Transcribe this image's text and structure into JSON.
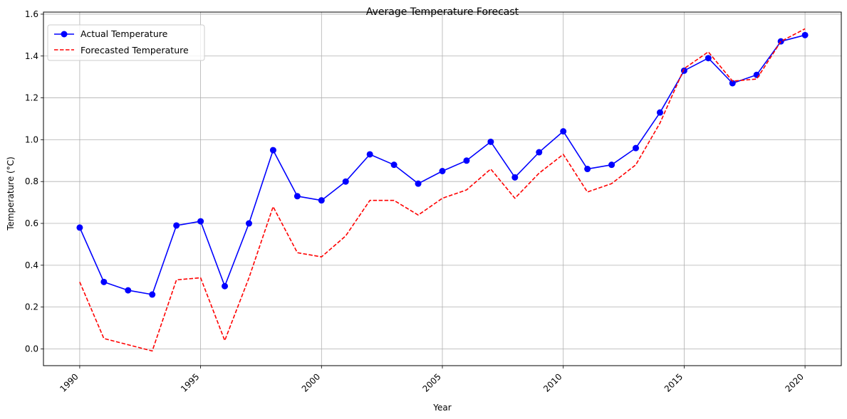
{
  "chart_data": {
    "type": "line",
    "title": "Average Temperature Forecast",
    "xlabel": "Year",
    "ylabel": "Temperature (°C)",
    "x": [
      1990,
      1991,
      1992,
      1993,
      1994,
      1995,
      1996,
      1997,
      1998,
      1999,
      2000,
      2001,
      2002,
      2003,
      2004,
      2005,
      2006,
      2007,
      2008,
      2009,
      2010,
      2011,
      2012,
      2013,
      2014,
      2015,
      2016,
      2017,
      2018,
      2019,
      2020
    ],
    "xlim": [
      1988.5,
      2021.5
    ],
    "ylim": [
      -0.08,
      1.61
    ],
    "xticks": [
      "1990",
      "1995",
      "2000",
      "2005",
      "2010",
      "2015",
      "2020"
    ],
    "yticks": [
      "0.0",
      "0.2",
      "0.4",
      "0.6",
      "0.8",
      "1.0",
      "1.2",
      "1.4",
      "1.6"
    ],
    "grid": true,
    "legend_position": "top-left",
    "series": [
      {
        "name": "Actual Temperature",
        "color": "#0000ff",
        "style": "solid",
        "marker": "circle",
        "values": [
          0.58,
          0.32,
          0.28,
          0.26,
          0.59,
          0.61,
          0.3,
          0.6,
          0.95,
          0.73,
          0.71,
          0.8,
          0.93,
          0.88,
          0.79,
          0.85,
          0.9,
          0.99,
          0.82,
          0.94,
          1.04,
          0.86,
          0.88,
          0.96,
          1.13,
          1.33,
          1.39,
          1.27,
          1.31,
          1.47,
          1.5
        ]
      },
      {
        "name": "Forecasted Temperature",
        "color": "#ff0000",
        "style": "dashed",
        "marker": "none",
        "values": [
          0.32,
          0.05,
          0.02,
          -0.01,
          0.33,
          0.34,
          0.04,
          0.34,
          0.68,
          0.46,
          0.44,
          0.54,
          0.71,
          0.71,
          0.64,
          0.72,
          0.76,
          0.86,
          0.72,
          0.84,
          0.93,
          0.75,
          0.79,
          0.88,
          1.08,
          1.34,
          1.42,
          1.28,
          1.29,
          1.47,
          1.53
        ]
      }
    ]
  }
}
